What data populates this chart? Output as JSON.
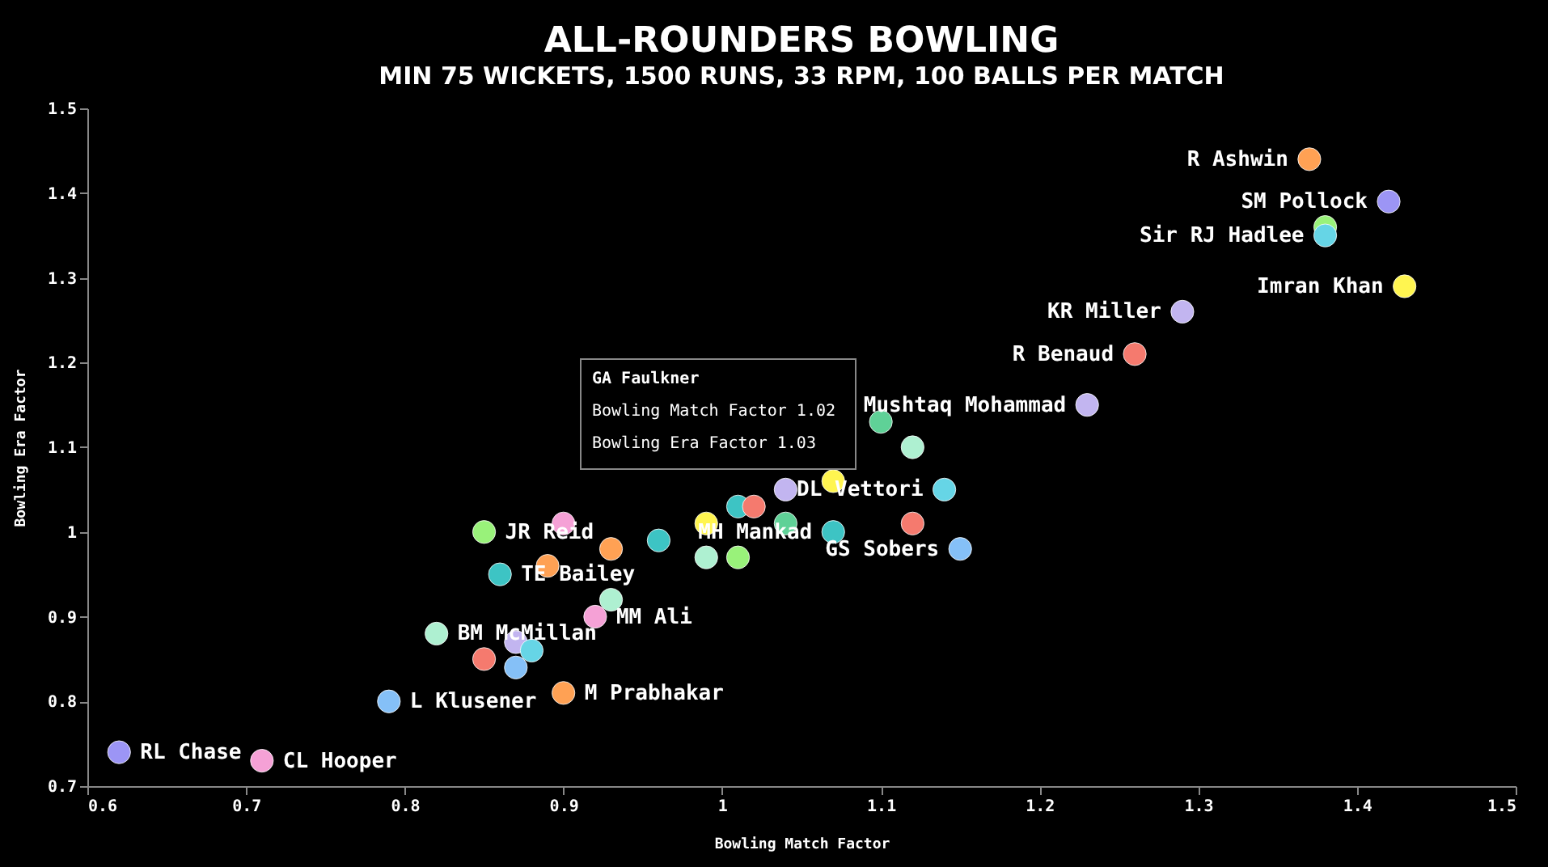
{
  "chart_data": {
    "type": "scatter",
    "title": "ALL-ROUNDERS BOWLING",
    "subtitle": "MIN 75 WICKETS, 1500 RUNS, 33 RPM, 100 BALLS PER MATCH",
    "xlabel": "Bowling Match Factor",
    "ylabel": "Bowling Era Factor",
    "x": [
      1.37,
      1.42,
      1.38,
      1.38,
      1.43,
      1.29,
      1.26,
      1.23,
      1.1,
      1.12,
      1.14,
      1.07,
      1.04,
      1.01,
      1.04,
      1.07,
      1.12,
      1.15,
      0.99,
      0.99,
      1.01,
      0.96,
      0.93,
      0.9,
      0.85,
      0.89,
      0.86,
      0.93,
      0.92,
      0.82,
      0.87,
      0.88,
      0.85,
      0.87,
      0.79,
      0.9,
      0.62,
      0.71,
      1.02
    ],
    "values": [
      1.44,
      1.39,
      1.36,
      1.35,
      1.29,
      1.26,
      1.21,
      1.15,
      1.13,
      1.1,
      1.05,
      1.06,
      1.05,
      1.03,
      1.01,
      1.0,
      1.01,
      0.98,
      1.01,
      0.97,
      0.97,
      0.99,
      0.98,
      1.01,
      1.0,
      0.96,
      0.95,
      0.92,
      0.9,
      0.88,
      0.87,
      0.86,
      0.85,
      0.84,
      0.8,
      0.81,
      0.74,
      0.73,
      1.03
    ],
    "colors": [
      "#ffa154",
      "#9c95f5",
      "#99f27a",
      "#66d5e6",
      "#fff550",
      "#c2b5f0",
      "#f57a6e",
      "#c2b5f0",
      "#5fd197",
      "#aef0d1",
      "#66d5e6",
      "#fff550",
      "#c2b5f0",
      "#3dc4c4",
      "#5fd197",
      "#3dc4c4",
      "#f57a6e",
      "#85c0f7",
      "#fff550",
      "#aef0d1",
      "#99f27a",
      "#3dc4c4",
      "#ffa154",
      "#f5a1d6",
      "#99f27a",
      "#ffa154",
      "#3dc4c4",
      "#aef0d1",
      "#f5a1d6",
      "#aef0d1",
      "#c2b5f0",
      "#66d5e6",
      "#f57a6e",
      "#85c0f7",
      "#85c0f7",
      "#ffa154",
      "#9c95f5",
      "#f5a1d6",
      "#f57a6e"
    ],
    "xlim": [
      0.6,
      1.5
    ],
    "ylim": [
      0.7,
      1.5
    ],
    "xticks": [
      0.6,
      0.7,
      0.8,
      0.9,
      1,
      1.1,
      1.2,
      1.3,
      1.4,
      1.5
    ],
    "yticks": [
      0.7,
      0.8,
      0.9,
      1,
      1.1,
      1.2,
      1.3,
      1.4,
      1.5
    ],
    "grid": false,
    "marker": "circle",
    "annotations": [
      "GA Faulkner",
      "Bowling Match Factor 1.02",
      "Bowling Era Factor 1.03",
      {
        "text": "R Ashwin",
        "x": 1.37,
        "y": 1.44
      },
      {
        "text": "SM Pollock",
        "x": 1.42,
        "y": 1.39
      },
      {
        "text": "Sir RJ Hadlee",
        "x": 1.38,
        "y": 1.35
      },
      {
        "text": "Imran Khan",
        "x": 1.43,
        "y": 1.29
      },
      {
        "text": "KR Miller",
        "x": 1.29,
        "y": 1.26
      },
      {
        "text": "R Benaud",
        "x": 1.26,
        "y": 1.21
      },
      {
        "text": "Mushtaq Mohammad",
        "x": 1.23,
        "y": 1.15
      },
      {
        "text": "DL Vettori",
        "x": 1.14,
        "y": 1.05
      },
      {
        "text": "MH Mankad",
        "x": 1.07,
        "y": 1.0
      },
      {
        "text": "GS Sobers",
        "x": 1.15,
        "y": 0.98
      },
      {
        "text": "JR Reid",
        "x": 0.85,
        "y": 1.0
      },
      {
        "text": "TE Bailey",
        "x": 0.86,
        "y": 0.95
      },
      {
        "text": "MM Ali",
        "x": 0.92,
        "y": 0.9
      },
      {
        "text": "BM McMillan",
        "x": 0.82,
        "y": 0.88
      },
      {
        "text": "L Klusener",
        "x": 0.79,
        "y": 0.8
      },
      {
        "text": "M Prabhakar",
        "x": 0.9,
        "y": 0.81
      },
      {
        "text": "RL Chase",
        "x": 0.62,
        "y": 0.74
      },
      {
        "text": "CL Hooper",
        "x": 0.71,
        "y": 0.73
      }
    ]
  }
}
